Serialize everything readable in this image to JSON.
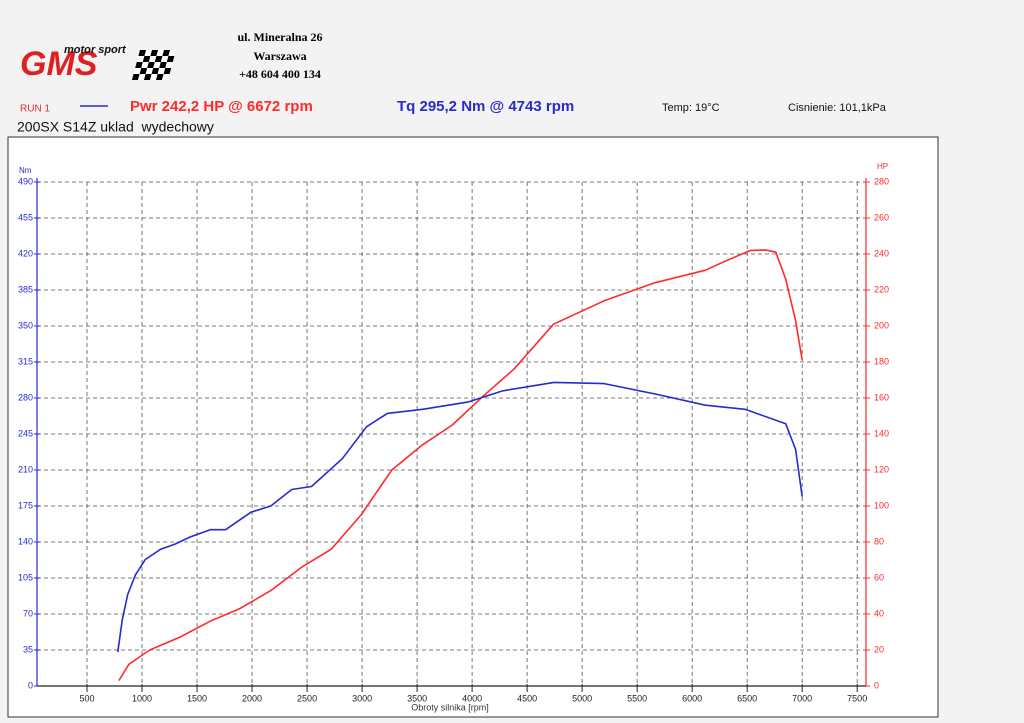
{
  "header": {
    "logo": "GMS",
    "logo_subtitle": "motor sport",
    "address": [
      "ul. Mineralna 26",
      "Warszawa",
      "+48 604 400 134"
    ],
    "run": "RUN 1",
    "temperature": "Temp: 19°C",
    "pressure": "Cisnienie: 101,1kPa",
    "subtitle": "200SX S14Z uklad  wydechowy"
  },
  "chart_data": {
    "type": "line",
    "xlabel": "Obroty silnika [rpm]",
    "ylabel": "Nm",
    "y2label": "HP",
    "xlim": [
      0,
      7580
    ],
    "xticks": [
      500,
      1000,
      1500,
      2000,
      2500,
      3000,
      3500,
      4000,
      4500,
      5000,
      5500,
      6000,
      6500,
      7000,
      7500
    ],
    "ylim": [
      0,
      490
    ],
    "yticks": [
      0,
      35,
      70,
      105,
      140,
      175,
      210,
      245,
      280,
      315,
      350,
      385,
      420,
      455,
      490
    ],
    "y2lim": [
      0,
      280
    ],
    "y2ticks": [
      0,
      20,
      40,
      60,
      80,
      100,
      120,
      140,
      160,
      180,
      200,
      220,
      240,
      260,
      280
    ],
    "grid": true,
    "series": [
      {
        "name": "Pwr 242,2 HP @ 6672 rpm",
        "color": "#ff2a2a",
        "axis": "y2",
        "x": [
          790,
          880,
          1070,
          1340,
          1620,
          1890,
          2170,
          2450,
          2720,
          2990,
          3270,
          3550,
          3820,
          4100,
          4380,
          4740,
          5200,
          5660,
          6120,
          6300,
          6530,
          6672,
          6760,
          6850,
          6940,
          7000
        ],
        "values": [
          3,
          12,
          20,
          27,
          36,
          43,
          53,
          66,
          76,
          95,
          120,
          134,
          145,
          161,
          176,
          201,
          214,
          224,
          231,
          236,
          242,
          242.2,
          241,
          226,
          203,
          181
        ]
      },
      {
        "name": "Tq 295,2 Nm @ 4743 rpm",
        "color": "#2a2acc",
        "x": [
          780,
          820,
          870,
          940,
          1030,
          1170,
          1300,
          1440,
          1620,
          1760,
          1990,
          2170,
          2360,
          2540,
          2820,
          3040,
          3230,
          3550,
          3960,
          4280,
          4743,
          5200,
          5660,
          6120,
          6480,
          6850,
          6940,
          7000
        ],
        "values": [
          33,
          64,
          89,
          108,
          123,
          133,
          138,
          145,
          152,
          152,
          169,
          175,
          191,
          194,
          221,
          252,
          265,
          269,
          276,
          287,
          295.2,
          294,
          284,
          273,
          269,
          255,
          230,
          184
        ]
      }
    ]
  }
}
